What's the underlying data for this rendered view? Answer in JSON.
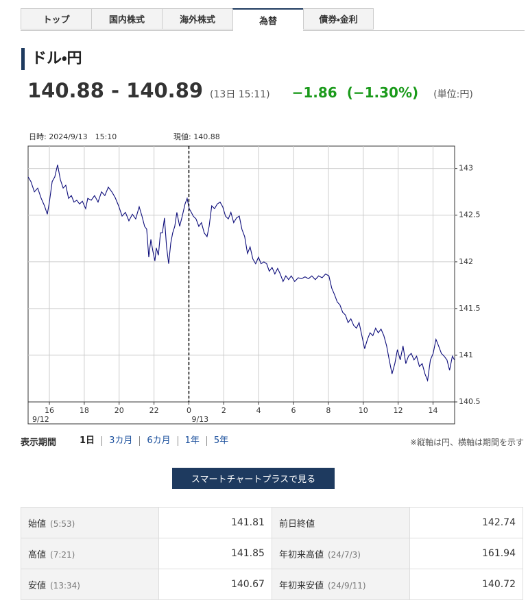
{
  "tabs": [
    "トップ",
    "国内株式",
    "海外株式",
    "為替",
    "債券・金利"
  ],
  "active_tab": 3,
  "heading": "ドル・円",
  "quote": {
    "price": "140.88 - 140.89",
    "time": "(13日 15:11)",
    "change": "−1.86",
    "change_pct": "(−1.30%)",
    "unit": "(単位:円)"
  },
  "chart_data": {
    "type": "line",
    "color": "#0c0c7a",
    "grid": true,
    "cursor": {
      "time_label": "日時: 2024/9/13　15:10",
      "value_label": "現値: 140.88",
      "x": 24
    },
    "date_labels": [
      "9/12",
      "9/13"
    ],
    "xlim": [
      14.78,
      39.24
    ],
    "ylim": [
      140.5,
      143.24
    ],
    "xticks": [
      16,
      18,
      20,
      22,
      {
        "value": 24,
        "label": "0"
      },
      {
        "value": 26,
        "label": "2"
      },
      {
        "value": 28,
        "label": "4"
      },
      {
        "value": 30,
        "label": "6"
      },
      {
        "value": 32,
        "label": "8"
      },
      {
        "value": 34,
        "label": "10"
      },
      {
        "value": 36,
        "label": "12"
      },
      {
        "value": 38,
        "label": "14"
      }
    ],
    "yticks": [
      143,
      142.5,
      142,
      141.5,
      141,
      140.5
    ],
    "x": [
      14.78,
      14.94,
      15.14,
      15.33,
      15.53,
      15.72,
      15.88,
      16.0,
      16.16,
      16.31,
      16.47,
      16.63,
      16.79,
      16.94,
      17.1,
      17.26,
      17.41,
      17.57,
      17.73,
      17.89,
      18.08,
      18.2,
      18.4,
      18.59,
      18.79,
      18.99,
      19.18,
      19.38,
      19.58,
      19.77,
      19.97,
      20.17,
      20.36,
      20.56,
      20.76,
      20.95,
      21.15,
      21.31,
      21.46,
      21.58,
      21.7,
      21.82,
      21.93,
      22.05,
      22.13,
      22.25,
      22.37,
      22.48,
      22.6,
      22.72,
      22.84,
      22.96,
      23.07,
      23.19,
      23.31,
      23.47,
      23.62,
      23.78,
      23.9,
      24.02,
      24.14,
      24.25,
      24.41,
      24.57,
      24.72,
      24.88,
      25.04,
      25.16,
      25.31,
      25.47,
      25.63,
      25.79,
      25.94,
      26.1,
      26.26,
      26.41,
      26.57,
      26.73,
      26.89,
      27.04,
      27.2,
      27.36,
      27.51,
      27.67,
      27.83,
      27.99,
      28.14,
      28.3,
      28.46,
      28.61,
      28.77,
      28.93,
      29.09,
      29.24,
      29.4,
      29.56,
      29.72,
      29.87,
      30.07,
      30.27,
      30.46,
      30.66,
      30.86,
      31.05,
      31.25,
      31.44,
      31.64,
      31.84,
      32.03,
      32.19,
      32.35,
      32.51,
      32.66,
      32.82,
      32.98,
      33.13,
      33.29,
      33.45,
      33.61,
      33.76,
      33.92,
      34.08,
      34.24,
      34.39,
      34.55,
      34.71,
      34.86,
      35.02,
      35.18,
      35.34,
      35.49,
      35.65,
      35.81,
      35.96,
      36.12,
      36.28,
      36.44,
      36.59,
      36.75,
      36.91,
      37.06,
      37.22,
      37.38,
      37.54,
      37.69,
      37.85,
      38.01,
      38.17,
      38.32,
      38.48,
      38.64,
      38.8,
      38.95,
      39.11,
      39.23
    ],
    "values": [
      142.91,
      142.86,
      142.75,
      142.79,
      142.68,
      142.6,
      142.51,
      142.64,
      142.86,
      142.91,
      143.04,
      142.88,
      142.79,
      142.82,
      142.68,
      142.71,
      142.64,
      142.66,
      142.62,
      142.65,
      142.57,
      142.68,
      142.66,
      142.71,
      142.64,
      142.75,
      142.71,
      142.8,
      142.75,
      142.69,
      142.6,
      142.49,
      142.53,
      142.44,
      142.51,
      142.46,
      142.59,
      142.49,
      142.38,
      142.35,
      142.05,
      142.24,
      142.12,
      142.01,
      142.15,
      142.07,
      142.31,
      142.31,
      142.47,
      142.16,
      141.98,
      142.2,
      142.31,
      142.38,
      142.53,
      142.38,
      142.49,
      142.62,
      142.68,
      142.57,
      142.53,
      142.49,
      142.46,
      142.38,
      142.42,
      142.31,
      142.27,
      142.38,
      142.6,
      142.57,
      142.62,
      142.64,
      142.59,
      142.49,
      142.46,
      142.53,
      142.42,
      142.47,
      142.49,
      142.35,
      142.27,
      142.09,
      142.16,
      142.03,
      141.98,
      142.05,
      141.98,
      142.0,
      141.98,
      141.9,
      141.94,
      141.87,
      141.93,
      141.87,
      141.79,
      141.85,
      141.81,
      141.85,
      141.79,
      141.83,
      141.82,
      141.84,
      141.82,
      141.85,
      141.81,
      141.85,
      141.83,
      141.87,
      141.85,
      141.72,
      141.65,
      141.57,
      141.54,
      141.46,
      141.43,
      141.35,
      141.39,
      141.32,
      141.29,
      141.35,
      141.21,
      141.07,
      141.17,
      141.24,
      141.21,
      141.29,
      141.24,
      141.28,
      141.21,
      141.1,
      140.95,
      140.8,
      140.91,
      141.06,
      140.95,
      141.1,
      140.91,
      140.99,
      141.02,
      140.95,
      140.99,
      140.88,
      140.91,
      140.8,
      140.73,
      140.95,
      141.02,
      141.17,
      141.1,
      141.02,
      140.99,
      140.95,
      140.84,
      140.99,
      140.95
    ]
  },
  "period": {
    "label": "表示期間",
    "options": [
      "1日",
      "3カ月",
      "6カ月",
      "1年",
      "5年"
    ],
    "active": 0,
    "note": "※縦軸は円、横軸は期間を示す"
  },
  "button": "スマートチャートプラスで見る",
  "table": {
    "rows": [
      [
        {
          "label": "始値",
          "sub": "(5:53)",
          "value": "141.81"
        },
        {
          "label": "前日終値",
          "value": "142.74"
        }
      ],
      [
        {
          "label": "高値",
          "sub": "(7:21)",
          "value": "141.85"
        },
        {
          "label": "年初来高値",
          "sub": "(24/7/3)",
          "value": "161.94"
        }
      ],
      [
        {
          "label": "安値",
          "sub": "(13:34)",
          "value": "140.67"
        },
        {
          "label": "年初来安値",
          "sub": "(24/9/11)",
          "value": "140.72"
        }
      ]
    ]
  }
}
